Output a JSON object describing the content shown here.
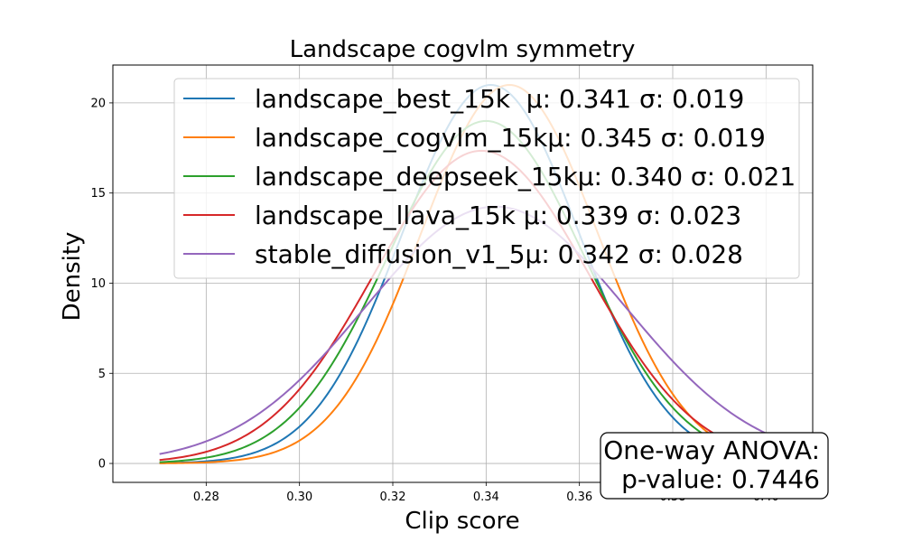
{
  "chart_data": {
    "type": "line",
    "title": "Landscape cogvlm symmetry",
    "xlabel": "Clip score",
    "ylabel": "Density",
    "xlim": [
      0.26,
      0.41
    ],
    "ylim": [
      -1.05,
      22.1
    ],
    "x_ticks": [
      0.28,
      0.3,
      0.32,
      0.34,
      0.36,
      0.38,
      0.4
    ],
    "x_tick_labels": [
      "0.28",
      "0.30",
      "0.32",
      "0.34",
      "0.36",
      "0.38",
      "0.40"
    ],
    "y_ticks": [
      0,
      5,
      10,
      15,
      20
    ],
    "y_tick_labels": [
      "0",
      "5",
      "10",
      "15",
      "20"
    ],
    "grid": true,
    "legend_position": "top-right",
    "x_range": [
      0.27,
      0.4
    ],
    "series": [
      {
        "name": "landscape_best_15k",
        "legend_label": "landscape_best_15k  μ: 0.341 σ: 0.019",
        "mean": 0.341,
        "std": 0.019,
        "color": "#1f77b4"
      },
      {
        "name": "landscape_cogvlm_15k",
        "legend_label": "landscape_cogvlm_15kμ: 0.345 σ: 0.019",
        "mean": 0.345,
        "std": 0.019,
        "color": "#ff7f0e"
      },
      {
        "name": "landscape_deepseek_15k",
        "legend_label": "landscape_deepseek_15kμ: 0.340 σ: 0.021",
        "mean": 0.34,
        "std": 0.021,
        "color": "#2ca02c"
      },
      {
        "name": "landscape_llava_15k",
        "legend_label": "landscape_llava_15k μ: 0.339 σ: 0.023",
        "mean": 0.339,
        "std": 0.023,
        "color": "#d62728"
      },
      {
        "name": "stable_diffusion_v1_5",
        "legend_label": "stable_diffusion_v1_5μ: 0.342 σ: 0.028",
        "mean": 0.342,
        "std": 0.028,
        "color": "#9467bd"
      }
    ],
    "annotation": {
      "line1": "One-way ANOVA:",
      "line2": "p-value: 0.7446",
      "position": "bottom-right"
    }
  }
}
